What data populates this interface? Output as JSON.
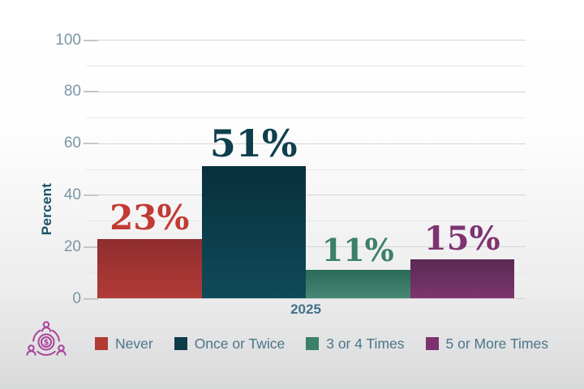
{
  "chart_data": {
    "type": "bar",
    "title": "",
    "categories": [
      "Never",
      "Once or Twice",
      "3 or 4 Times",
      "5 or More Times"
    ],
    "values": [
      23,
      51,
      11,
      15
    ],
    "value_labels": [
      "23%",
      "51%",
      "11%",
      "15%"
    ],
    "value_label_colors": [
      "#c23b33",
      "#0e3f4d",
      "#3b8069",
      "#7e3371"
    ],
    "bar_gradients": [
      [
        "#8f2d2f",
        "#b23b37"
      ],
      [
        "#07303b",
        "#0f4a5a"
      ],
      [
        "#2a6a58",
        "#478874"
      ],
      [
        "#5a2953",
        "#7c366e"
      ]
    ],
    "xlabel": "2025",
    "ylabel": "Percent",
    "ylim": [
      0,
      100
    ],
    "yticks": [
      "0",
      "20",
      "40",
      "60",
      "80",
      "100"
    ],
    "minor_yticks": [
      10,
      30,
      50,
      70,
      90
    ],
    "grid": "horizontal major and minor",
    "legend": {
      "position": "bottom",
      "items": [
        {
          "label": "Never",
          "color": "#b23a35"
        },
        {
          "label": "Once or Twice",
          "color": "#0e3d4a"
        },
        {
          "label": "3 or 4 Times",
          "color": "#3b8068"
        },
        {
          "label": "5 or More Times",
          "color": "#7d3270"
        }
      ]
    }
  },
  "icon": {
    "name": "people-sharing-money-icon",
    "color": "#a8459b",
    "dollar_sign": "$"
  },
  "styles": {
    "tick_label_color": "#7b96a6",
    "y_axis_title_color": "#1a5366",
    "x_label_color": "#44708b",
    "legend_text_color": "#4b7589",
    "grid_major_color": "#d4d4d4",
    "grid_minor_color": "#e7e7e7",
    "background_top": "#ffffff",
    "background_bottom": "#d8d9da"
  }
}
